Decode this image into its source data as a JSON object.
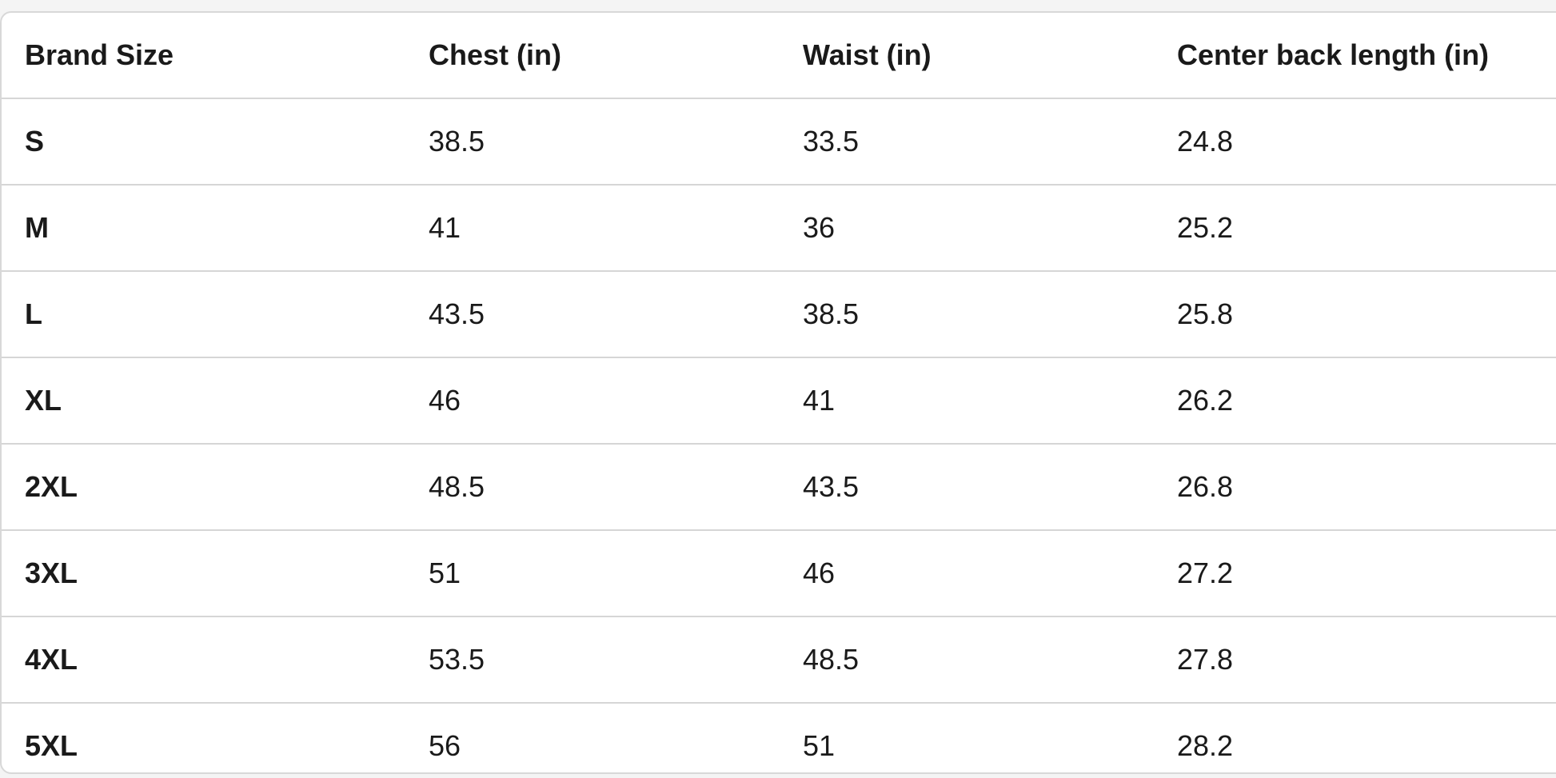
{
  "table": {
    "headers": [
      "Brand Size",
      "Chest (in)",
      "Waist (in)",
      "Center back length (in)"
    ],
    "rows": [
      [
        "S",
        "38.5",
        "33.5",
        "24.8"
      ],
      [
        "M",
        "41",
        "36",
        "25.2"
      ],
      [
        "L",
        "43.5",
        "38.5",
        "25.8"
      ],
      [
        "XL",
        "46",
        "41",
        "26.2"
      ],
      [
        "2XL",
        "48.5",
        "43.5",
        "26.8"
      ],
      [
        "3XL",
        "51",
        "46",
        "27.2"
      ],
      [
        "4XL",
        "53.5",
        "48.5",
        "27.8"
      ],
      [
        "5XL",
        "56",
        "51",
        "28.2"
      ]
    ]
  }
}
